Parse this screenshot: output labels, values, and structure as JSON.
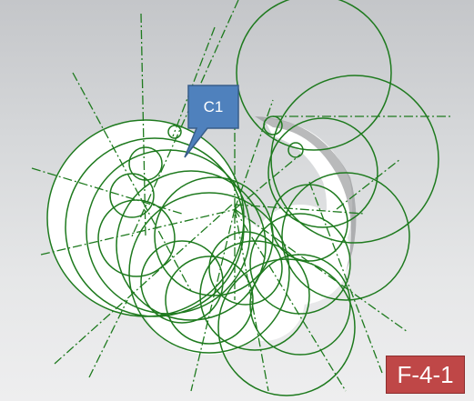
{
  "callout": {
    "label": "C1",
    "fill": "#4f81bd",
    "border": "#385d8a"
  },
  "figure_label": {
    "text": "F-4-1",
    "fill": "#bf4747"
  },
  "colors": {
    "geometry": "#1e7a1e",
    "surface": "#ffffff",
    "background_top": "#c4c6c9",
    "background_bottom": "#eeeeef"
  },
  "icons": {
    "viewport": "cad-sketch-canvas"
  }
}
